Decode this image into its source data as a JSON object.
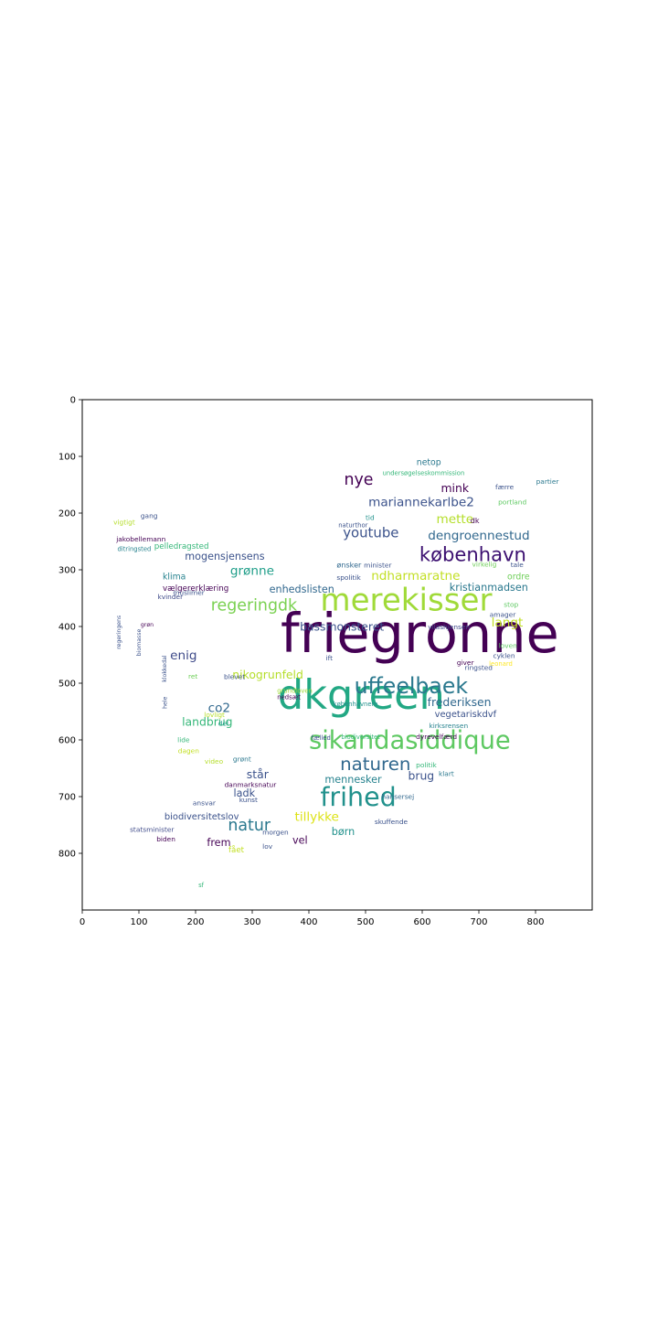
{
  "chart_data": {
    "type": "wordcloud-image",
    "title": "",
    "xlabel": "",
    "ylabel": "",
    "xlim": [
      0,
      900
    ],
    "ylim": [
      900,
      0
    ],
    "xticks": [
      0,
      100,
      200,
      300,
      400,
      500,
      600,
      700,
      800
    ],
    "yticks": [
      0,
      100,
      200,
      300,
      400,
      500,
      600,
      700,
      800
    ],
    "grid": false,
    "palette": "viridis",
    "words": [
      {
        "text": "friegronne",
        "x": 350,
        "y": 445,
        "size": 95,
        "color": "#440154"
      },
      {
        "text": "dkgreen",
        "x": 345,
        "y": 545,
        "size": 72,
        "color": "#22a884"
      },
      {
        "text": "merekisser",
        "x": 420,
        "y": 372,
        "size": 55,
        "color": "#a0da39"
      },
      {
        "text": "sikandasiddique",
        "x": 400,
        "y": 615,
        "size": 44,
        "color": "#5ec962"
      },
      {
        "text": "uffeelbaek",
        "x": 480,
        "y": 518,
        "size": 38,
        "color": "#2a788e"
      },
      {
        "text": "frihed",
        "x": 420,
        "y": 716,
        "size": 46,
        "color": "#21918c"
      },
      {
        "text": "naturen",
        "x": 455,
        "y": 653,
        "size": 32,
        "color": "#31688e"
      },
      {
        "text": "københavn",
        "x": 595,
        "y": 285,
        "size": 34,
        "color": "#3b0f70"
      },
      {
        "text": "regeringdk",
        "x": 227,
        "y": 372,
        "size": 28,
        "color": "#7ad151"
      },
      {
        "text": "natur",
        "x": 257,
        "y": 760,
        "size": 28,
        "color": "#2a788e"
      },
      {
        "text": "mariannekarlbe2",
        "x": 505,
        "y": 188,
        "size": 22,
        "color": "#3b528b"
      },
      {
        "text": "dengroennestud",
        "x": 610,
        "y": 247,
        "size": 22,
        "color": "#31688e"
      },
      {
        "text": "youtube",
        "x": 460,
        "y": 243,
        "size": 24,
        "color": "#3b528b"
      },
      {
        "text": "nye",
        "x": 462,
        "y": 150,
        "size": 28,
        "color": "#440154"
      },
      {
        "text": "ndharmaratne",
        "x": 510,
        "y": 318,
        "size": 22,
        "color": "#c2df23"
      },
      {
        "text": "tillykke",
        "x": 375,
        "y": 743,
        "size": 22,
        "color": "#dde318"
      },
      {
        "text": "mette",
        "x": 625,
        "y": 218,
        "size": 22,
        "color": "#b5de2b"
      },
      {
        "text": "langt",
        "x": 722,
        "y": 400,
        "size": 22,
        "color": "#c2df23"
      },
      {
        "text": "enig",
        "x": 155,
        "y": 458,
        "size": 22,
        "color": "#3e4a89"
      },
      {
        "text": "mink",
        "x": 633,
        "y": 163,
        "size": 20,
        "color": "#440154"
      },
      {
        "text": "grønne",
        "x": 261,
        "y": 309,
        "size": 22,
        "color": "#1f9e89"
      },
      {
        "text": "bassmonsteret",
        "x": 384,
        "y": 407,
        "size": 20,
        "color": "#3b528b"
      },
      {
        "text": "nikogrunfeld",
        "x": 265,
        "y": 492,
        "size": 20,
        "color": "#b5de2b"
      },
      {
        "text": "co2",
        "x": 222,
        "y": 551,
        "size": 22,
        "color": "#31688e"
      },
      {
        "text": "landbrug",
        "x": 176,
        "y": 575,
        "size": 20,
        "color": "#35b779"
      },
      {
        "text": "frederiksen",
        "x": 609,
        "y": 540,
        "size": 20,
        "color": "#31688e"
      },
      {
        "text": "brug",
        "x": 575,
        "y": 670,
        "size": 20,
        "color": "#3b528b"
      },
      {
        "text": "står",
        "x": 290,
        "y": 668,
        "size": 20,
        "color": "#3b528b"
      },
      {
        "text": "mennesker",
        "x": 428,
        "y": 676,
        "size": 18,
        "color": "#26828e"
      },
      {
        "text": "kristianmadsen",
        "x": 648,
        "y": 337,
        "size": 18,
        "color": "#2a788e"
      },
      {
        "text": "mogensjensens",
        "x": 181,
        "y": 282,
        "size": 18,
        "color": "#3b528b"
      },
      {
        "text": "enhedslisten",
        "x": 330,
        "y": 340,
        "size": 18,
        "color": "#31688e"
      },
      {
        "text": "vegetariskdvf",
        "x": 622,
        "y": 560,
        "size": 16,
        "color": "#3b528b"
      },
      {
        "text": "biodiversitetslov",
        "x": 145,
        "y": 740,
        "size": 16,
        "color": "#3b528b"
      },
      {
        "text": "børn",
        "x": 440,
        "y": 768,
        "size": 18,
        "color": "#21918c"
      },
      {
        "text": "vel",
        "x": 371,
        "y": 783,
        "size": 18,
        "color": "#440154"
      },
      {
        "text": "frem",
        "x": 220,
        "y": 787,
        "size": 18,
        "color": "#440154"
      },
      {
        "text": "ladk",
        "x": 267,
        "y": 700,
        "size": 18,
        "color": "#3b528b"
      },
      {
        "text": "netop",
        "x": 590,
        "y": 115,
        "size": 15,
        "color": "#2a788e"
      },
      {
        "text": "klima",
        "x": 142,
        "y": 317,
        "size": 15,
        "color": "#26828e"
      },
      {
        "text": "ordre",
        "x": 750,
        "y": 317,
        "size": 15,
        "color": "#6ece58"
      },
      {
        "text": "pelledragsted",
        "x": 127,
        "y": 263,
        "size": 14,
        "color": "#35b779"
      },
      {
        "text": "vælgererklæring",
        "x": 142,
        "y": 337,
        "size": 14,
        "color": "#440154"
      },
      {
        "text": "vilashjensen",
        "x": 610,
        "y": 405,
        "size": 12,
        "color": "#3e4a89"
      },
      {
        "text": "kirksrensen",
        "x": 612,
        "y": 579,
        "size": 12,
        "color": "#26828e"
      },
      {
        "text": "dyrevelfærd",
        "x": 589,
        "y": 598,
        "size": 12,
        "color": "#440154"
      },
      {
        "text": "politik",
        "x": 589,
        "y": 648,
        "size": 12,
        "color": "#35b779"
      },
      {
        "text": "klart",
        "x": 629,
        "y": 664,
        "size": 12,
        "color": "#2a788e"
      },
      {
        "text": "skuffende",
        "x": 516,
        "y": 748,
        "size": 12,
        "color": "#3b528b"
      },
      {
        "text": "hansersej",
        "x": 528,
        "y": 704,
        "size": 12,
        "color": "#31688e"
      },
      {
        "text": "morgen",
        "x": 318,
        "y": 767,
        "size": 12,
        "color": "#3b528b"
      },
      {
        "text": "lov",
        "x": 318,
        "y": 792,
        "size": 12,
        "color": "#3b528b"
      },
      {
        "text": "fået",
        "x": 258,
        "y": 798,
        "size": 14,
        "color": "#c2df23"
      },
      {
        "text": "ansvar",
        "x": 195,
        "y": 715,
        "size": 12,
        "color": "#3b528b"
      },
      {
        "text": "biden",
        "x": 131,
        "y": 779,
        "size": 12,
        "color": "#440154"
      },
      {
        "text": "statsminister",
        "x": 84,
        "y": 762,
        "size": 12,
        "color": "#3e4a89"
      },
      {
        "text": "kunst",
        "x": 277,
        "y": 710,
        "size": 12,
        "color": "#3b528b"
      },
      {
        "text": "danmarksnatur",
        "x": 251,
        "y": 683,
        "size": 12,
        "color": "#440154"
      },
      {
        "text": "dagen",
        "x": 169,
        "y": 623,
        "size": 12,
        "color": "#c2df23"
      },
      {
        "text": "lide",
        "x": 168,
        "y": 604,
        "size": 12,
        "color": "#35b779"
      },
      {
        "text": "video",
        "x": 216,
        "y": 642,
        "size": 12,
        "color": "#b5de2b"
      },
      {
        "text": "grønt",
        "x": 266,
        "y": 638,
        "size": 12,
        "color": "#2a788e"
      },
      {
        "text": "del",
        "x": 240,
        "y": 575,
        "size": 12,
        "color": "#1f9e89"
      },
      {
        "text": "lovligt",
        "x": 215,
        "y": 560,
        "size": 12,
        "color": "#b5de2b"
      },
      {
        "text": "blevet",
        "x": 250,
        "y": 493,
        "size": 12,
        "color": "#3b528b"
      },
      {
        "text": "ret",
        "x": 187,
        "y": 492,
        "size": 12,
        "color": "#6ece58"
      },
      {
        "text": "kvinder",
        "x": 133,
        "y": 352,
        "size": 12,
        "color": "#3e4a89"
      },
      {
        "text": "muslimer",
        "x": 160,
        "y": 344,
        "size": 12,
        "color": "#3b528b"
      },
      {
        "text": "ditringsted",
        "x": 62,
        "y": 267,
        "size": 11,
        "color": "#26828e"
      },
      {
        "text": "jakobellemann",
        "x": 60,
        "y": 250,
        "size": 12,
        "color": "#440154"
      },
      {
        "text": "vigtigt",
        "x": 55,
        "y": 220,
        "size": 12,
        "color": "#b5de2b"
      },
      {
        "text": "gang",
        "x": 103,
        "y": 209,
        "size": 12,
        "color": "#3b528b"
      },
      {
        "text": "ønsker",
        "x": 449,
        "y": 296,
        "size": 13,
        "color": "#31688e"
      },
      {
        "text": "spolitik",
        "x": 449,
        "y": 318,
        "size": 12,
        "color": "#3b528b"
      },
      {
        "text": "minister",
        "x": 497,
        "y": 296,
        "size": 12,
        "color": "#3b528b"
      },
      {
        "text": "virkelig",
        "x": 688,
        "y": 294,
        "size": 12,
        "color": "#6ece58"
      },
      {
        "text": "tale",
        "x": 756,
        "y": 295,
        "size": 12,
        "color": "#3b528b"
      },
      {
        "text": "dk",
        "x": 685,
        "y": 218,
        "size": 13,
        "color": "#440154"
      },
      {
        "text": "portland",
        "x": 734,
        "y": 185,
        "size": 12,
        "color": "#5ec962"
      },
      {
        "text": "partier",
        "x": 801,
        "y": 148,
        "size": 12,
        "color": "#2a788e"
      },
      {
        "text": "færre",
        "x": 729,
        "y": 158,
        "size": 12,
        "color": "#3b528b"
      },
      {
        "text": "stop",
        "x": 744,
        "y": 365,
        "size": 12,
        "color": "#5ec962"
      },
      {
        "text": "amager",
        "x": 719,
        "y": 383,
        "size": 12,
        "color": "#3b528b"
      },
      {
        "text": "loven",
        "x": 735,
        "y": 438,
        "size": 12,
        "color": "#5ec962"
      },
      {
        "text": "cyklen",
        "x": 725,
        "y": 456,
        "size": 12,
        "color": "#3b528b"
      },
      {
        "text": "ringsted",
        "x": 675,
        "y": 477,
        "size": 12,
        "color": "#3b528b"
      },
      {
        "text": "giver",
        "x": 661,
        "y": 468,
        "size": 12,
        "color": "#440154"
      },
      {
        "text": "leonard",
        "x": 718,
        "y": 469,
        "size": 11,
        "color": "#fde725"
      },
      {
        "text": "biodiversitet",
        "x": 457,
        "y": 598,
        "size": 11,
        "color": "#35b779"
      },
      {
        "text": "fælled",
        "x": 404,
        "y": 600,
        "size": 11,
        "color": "#3b528b"
      },
      {
        "text": "nedsæt",
        "x": 344,
        "y": 528,
        "size": 11,
        "color": "#440154"
      },
      {
        "text": "københavnere",
        "x": 443,
        "y": 540,
        "size": 11,
        "color": "#21918c"
      },
      {
        "text": "grundloven",
        "x": 344,
        "y": 517,
        "size": 11,
        "color": "#a0da39"
      },
      {
        "text": "naturthor",
        "x": 452,
        "y": 225,
        "size": 11,
        "color": "#3b528b"
      },
      {
        "text": "tid",
        "x": 500,
        "y": 212,
        "size": 12,
        "color": "#21918c"
      },
      {
        "text": "undersøgelseskommission",
        "x": 530,
        "y": 133,
        "size": 11,
        "color": "#35b779"
      },
      {
        "text": "regeringens",
        "x": 68,
        "y": 440,
        "size": 10,
        "color": "#3b528b",
        "rotate": true
      },
      {
        "text": "biomasse",
        "x": 103,
        "y": 452,
        "size": 10,
        "color": "#3b528b",
        "rotate": true
      },
      {
        "text": "grøn",
        "x": 103,
        "y": 400,
        "size": 10,
        "color": "#440154"
      },
      {
        "text": "klokkedal",
        "x": 148,
        "y": 498,
        "size": 10,
        "color": "#3b528b",
        "rotate": true
      },
      {
        "text": "hele",
        "x": 149,
        "y": 545,
        "size": 10,
        "color": "#3b528b",
        "rotate": true
      },
      {
        "text": "sf",
        "x": 205,
        "y": 860,
        "size": 11,
        "color": "#35b779"
      },
      {
        "text": "ift",
        "x": 430,
        "y": 460,
        "size": 12,
        "color": "#3b528b"
      }
    ]
  }
}
